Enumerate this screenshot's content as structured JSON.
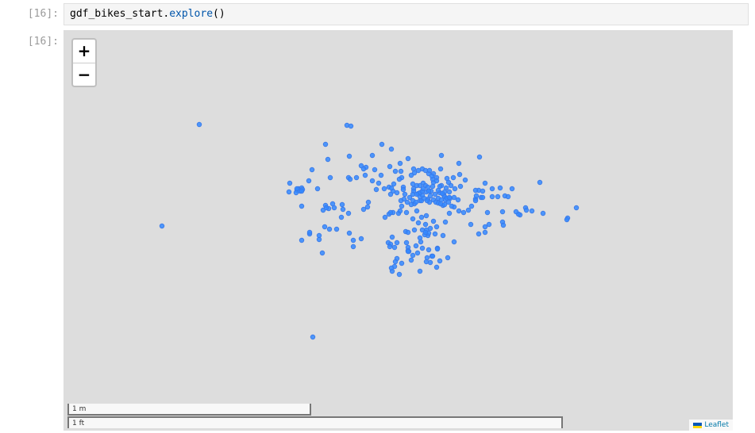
{
  "cell": {
    "input_prompt": "[16]:",
    "output_prompt": "[16]:",
    "code_object": "gdf_bikes_start.",
    "code_method": "explore",
    "code_parens": "()"
  },
  "map": {
    "zoom_in_label": "+",
    "zoom_out_label": "−",
    "scale_metric": "1 m",
    "scale_imperial": "1 ft",
    "attribution": "Leaflet",
    "flag_colors": [
      "#0057b7",
      "#ffd700"
    ],
    "background_color": "#dddddd",
    "marker_color": "#3388ff",
    "marker_icon": "circle-marker-icon"
  }
}
